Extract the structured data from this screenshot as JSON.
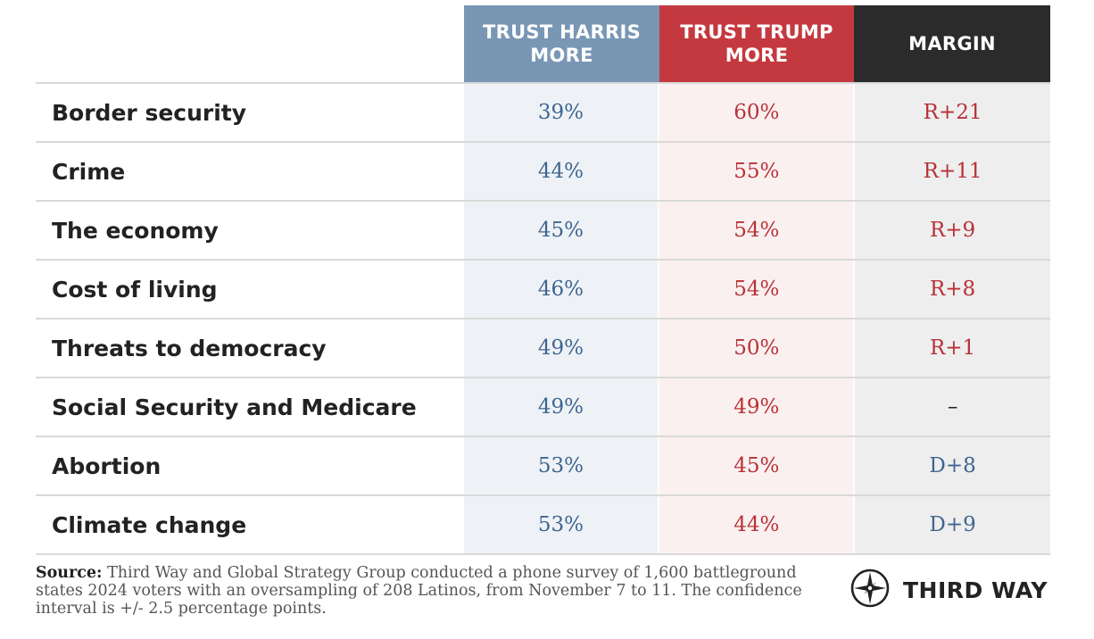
{
  "chart_data": {
    "type": "table",
    "columns": [
      "TRUST HARRIS\nMORE",
      "TRUST TRUMP\nMORE",
      "MARGIN"
    ],
    "rows": [
      {
        "issue": "Border security",
        "harris": "39%",
        "trump": "60%",
        "margin": "R+21",
        "lean": "rep"
      },
      {
        "issue": "Crime",
        "harris": "44%",
        "trump": "55%",
        "margin": "R+11",
        "lean": "rep"
      },
      {
        "issue": "The economy",
        "harris": "45%",
        "trump": "54%",
        "margin": "R+9",
        "lean": "rep"
      },
      {
        "issue": "Cost of living",
        "harris": "46%",
        "trump": "54%",
        "margin": "R+8",
        "lean": "rep"
      },
      {
        "issue": "Threats to democracy",
        "harris": "49%",
        "trump": "50%",
        "margin": "R+1",
        "lean": "rep"
      },
      {
        "issue": "Social Security and Medicare",
        "harris": "49%",
        "trump": "49%",
        "margin": "–",
        "lean": "tie"
      },
      {
        "issue": "Abortion",
        "harris": "53%",
        "trump": "45%",
        "margin": "D+8",
        "lean": "dem"
      },
      {
        "issue": "Climate change",
        "harris": "53%",
        "trump": "44%",
        "margin": "D+9",
        "lean": "dem"
      }
    ],
    "colors": {
      "harris_header": "#7997b5",
      "trump_header": "#c4393f",
      "margin_header": "#2b2b2b",
      "harris_cell": "#eef2f6",
      "trump_cell": "#fbf0f0",
      "margin_cell": "#eeeeee",
      "dem_text": "#3f6590",
      "rep_text": "#b83136"
    }
  },
  "footer": {
    "source_label": "Source:",
    "source_text": " Third Way and Global Strategy Group conducted a phone survey of 1,600 battleground states 2024 voters with an oversampling of 208 Latinos, from November 7 to 11. The confidence interval is +/- 2.5 percentage points.",
    "logo_icon": "compass-star-icon",
    "logo_text": "THIRD WAY"
  }
}
